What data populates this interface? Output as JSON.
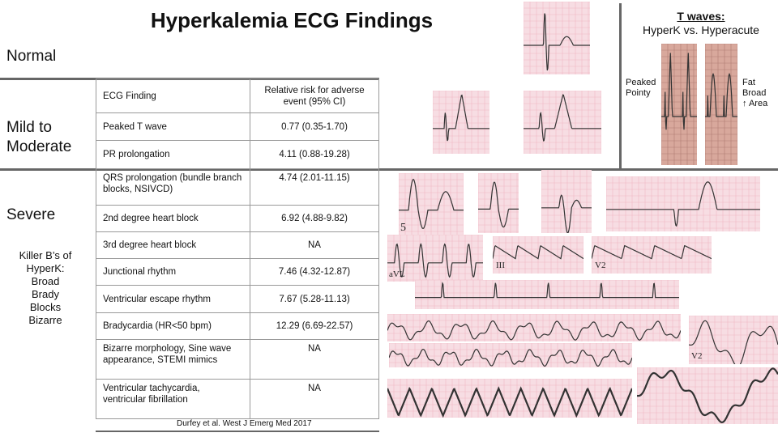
{
  "title": "Hyperkalemia ECG Findings",
  "sections": {
    "normal": "Normal",
    "mild": "Mild to Moderate",
    "severe": "Severe"
  },
  "killer_bs": {
    "heading": "Killer B’s of HyperK:",
    "items": [
      "Broad",
      "Brady",
      "Blocks",
      "Bizarre"
    ]
  },
  "table": {
    "header": [
      "ECG Finding",
      "Relative risk for adverse event (95% CI)"
    ],
    "rows": [
      [
        "Peaked T wave",
        "0.77 (0.35-1.70)"
      ],
      [
        "PR prolongation",
        "4.11 (0.88-19.28)"
      ],
      [
        "QRS prolongation (bundle branch blocks, NSIVCD)",
        "4.74 (2.01-11.15)"
      ],
      [
        "2nd degree heart block",
        "6.92 (4.88-9.82)"
      ],
      [
        "3rd degree heart block",
        "NA"
      ],
      [
        "Junctional rhythm",
        "7.46 (4.32-12.87)"
      ],
      [
        "Ventricular escape rhythm",
        "7.67 (5.28-11.13)"
      ],
      [
        "Bradycardia (HR<50 bpm)",
        "12.29 (6.69-22.57)"
      ],
      [
        "Bizarre morphology, Sine wave appearance, STEMI mimics",
        "NA"
      ],
      [
        "Ventricular tachycardia, ventricular fibrillation",
        "NA"
      ]
    ]
  },
  "citation": "Durfey et al. West J Emerg Med 2017",
  "t_waves": {
    "heading": "T waves:",
    "subheading": "HyperK vs. Hyperacute",
    "left_label_1": "Peaked",
    "left_label_2": "Pointy",
    "right_label_1": "Fat",
    "right_label_2": "Broad",
    "right_label_3": "↑ Area"
  },
  "lead_labels": {
    "avl": "aVL",
    "iii": "III",
    "v2a": "V2",
    "v2b": "V2",
    "five": "5"
  },
  "colors": {
    "ecg_paper": "#f7dde3",
    "ecg_grid": "#f0b7c4",
    "ecg_paper_brown": "#d8a89c",
    "trace": "#333333",
    "divider": "#666666"
  }
}
